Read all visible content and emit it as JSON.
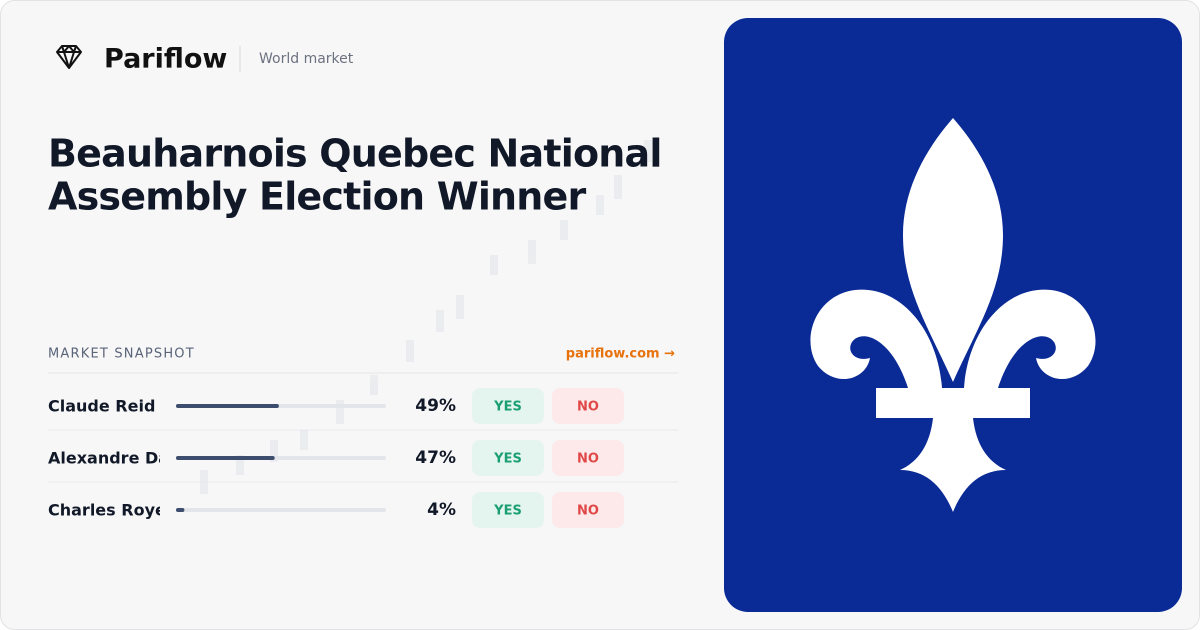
{
  "header": {
    "brand": "Pariflow",
    "section": "World market"
  },
  "title": {
    "line1": "Beauharnois Quebec National",
    "line2": "Assembly Election Winner"
  },
  "snapshot": {
    "heading": "MARKET SNAPSHOT",
    "link": "pariflow.com →",
    "yes": "YES",
    "no": "NO",
    "rows": [
      {
        "name": "Claude Reid",
        "value": 49,
        "value_label": "49%"
      },
      {
        "name": "Alexandre Da",
        "value": 47,
        "value_label": "47%"
      },
      {
        "name": "Charles Royer",
        "value": 4,
        "value_label": "4%"
      }
    ]
  }
}
